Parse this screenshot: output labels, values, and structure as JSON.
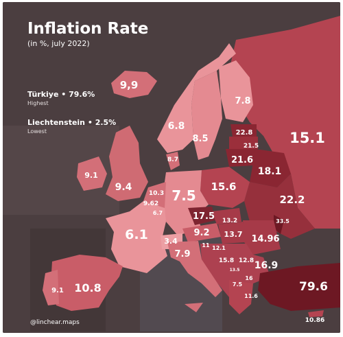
{
  "title": "Inflation Rate",
  "subtitle": "(in %, july 2022)",
  "highest": {
    "country": "Türkiye • 79.6%",
    "note": "Highest"
  },
  "lowest": {
    "country": "Liechtenstein • 2.5%",
    "note": "Lowest"
  },
  "credit": "@linchear.maps",
  "colors": {
    "background": "#4a3d3f",
    "light": "#e9949a",
    "mid": "#cf6b73",
    "strong": "#b44451",
    "dark": "#8a2632",
    "darkest": "#6d1823"
  },
  "labels": {
    "iceland": "9,9",
    "norway": "6.8",
    "sweden": "8.5",
    "finland": "7.8",
    "russia": "15.1",
    "estonia": "22.8",
    "latvia": "21.5",
    "lithuania": "21.6",
    "belarus": "18.1",
    "ukraine": "22.2",
    "moldova": "33.5",
    "poland": "15.6",
    "germany": "7.5",
    "denmark": "8.7",
    "ireland": "9.1",
    "uk": "9.4",
    "netherlands": "10.3",
    "belgium": "9.62",
    "luxembourg": "6.7",
    "france": "6.1",
    "switzerland": "3.4",
    "austria": "9.2",
    "czechia": "17.5",
    "slovakia": "13.2",
    "hungary": "13.7",
    "romania": "14.96",
    "italy": "7.9",
    "slovenia": "11",
    "croatia": "12.1",
    "bosnia": "15.8",
    "serbia": "12.8",
    "montenegro": "13.5",
    "bulgaria": "16.9",
    "north_macedonia": "16",
    "albania": "7.5",
    "greece": "11.6",
    "turkey": "79.6",
    "cyprus": "10.86",
    "spain": "10.8",
    "portugal": "9.1"
  }
}
